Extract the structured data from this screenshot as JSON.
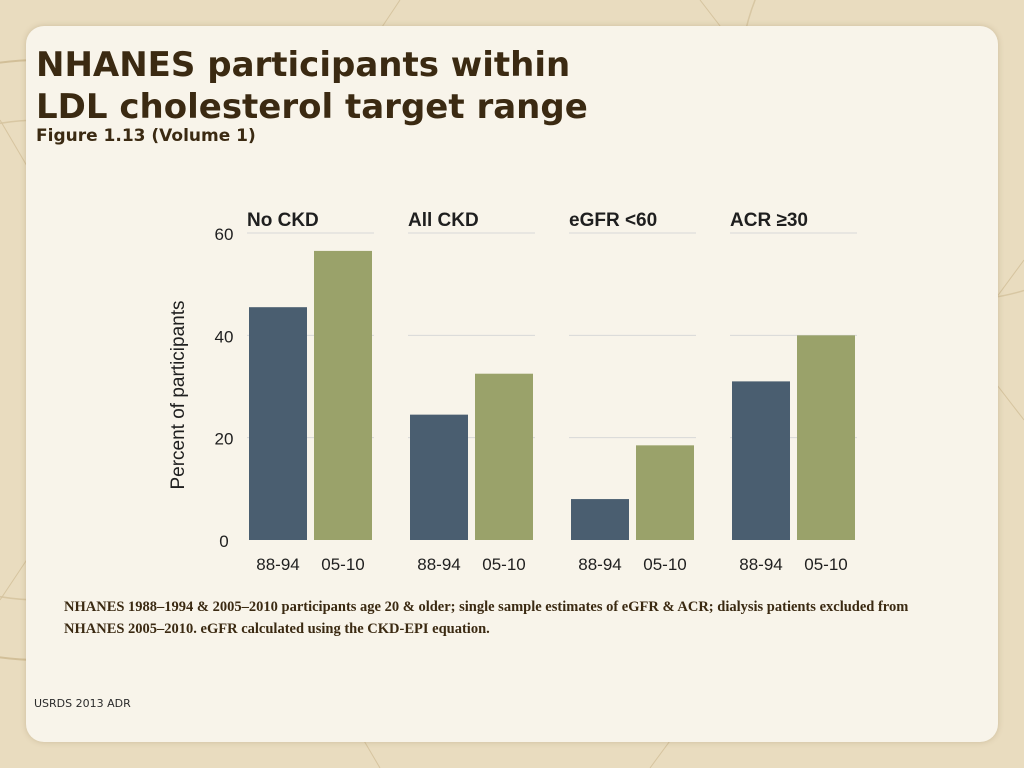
{
  "title_line1": "NHANES participants within",
  "title_line2": "LDL cholesterol target range",
  "subtitle": "Figure 1.13 (Volume 1)",
  "footnote": "NHANES 1988–1994 & 2005–2010 participants age 20 & older; single sample estimates of eGFR & ACR; dialysis patients excluded from NHANES 2005–2010. eGFR calculated using the CKD-EPI equation.",
  "footer": "USRDS 2013 ADR",
  "colors": {
    "series_1": "#4a5e70",
    "series_2": "#9aa26a",
    "grid": "#d8d8d8",
    "title": "#3b2a12",
    "background": "#e9dcbf"
  },
  "chart_data": {
    "type": "bar",
    "ylabel": "Percent of participants",
    "ylim": [
      0,
      60
    ],
    "yticks": [
      "0",
      "20",
      "40",
      "60"
    ],
    "ytick_values": [
      0,
      20,
      40,
      60
    ],
    "grid": true,
    "panels": [
      {
        "label": "No CKD",
        "categories": [
          "88-94",
          "05-10"
        ],
        "values": [
          45.5,
          56.5
        ]
      },
      {
        "label": "All CKD",
        "categories": [
          "88-94",
          "05-10"
        ],
        "values": [
          24.5,
          32.5
        ]
      },
      {
        "label": "eGFR <60",
        "categories": [
          "88-94",
          "05-10"
        ],
        "values": [
          8.0,
          18.5
        ]
      },
      {
        "label": "ACR ≥30",
        "categories": [
          "88-94",
          "05-10"
        ],
        "values": [
          31.0,
          40.0
        ]
      }
    ]
  }
}
